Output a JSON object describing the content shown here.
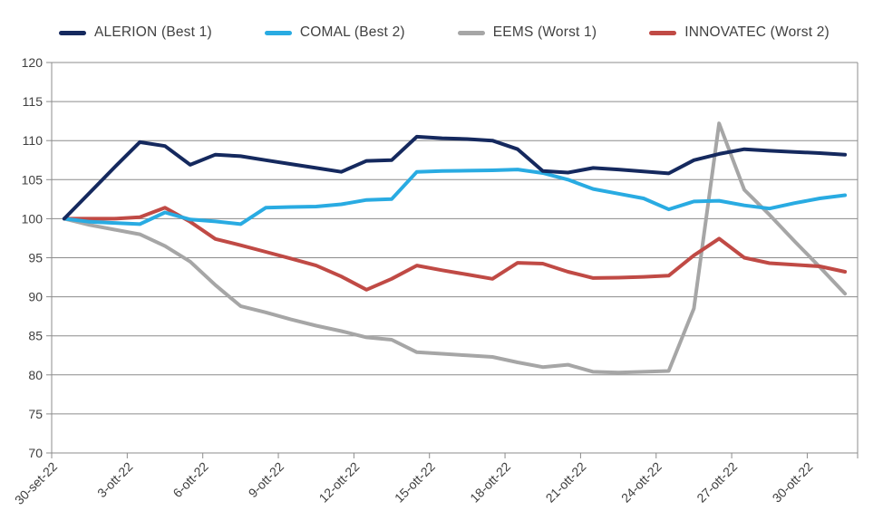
{
  "chart_data": {
    "type": "line",
    "title": "",
    "xlabel": "",
    "ylabel": "",
    "ylim": [
      70,
      120
    ],
    "y_tick_step": 5,
    "x_tick_label_every": 3,
    "grid": "horizontal",
    "legend_position": "top",
    "axis_color": "#8C8C8C",
    "label_color": "#3F3F3F",
    "categories": [
      "30-set-22",
      "1-ott-22",
      "2-ott-22",
      "3-ott-22",
      "4-ott-22",
      "5-ott-22",
      "6-ott-22",
      "7-ott-22",
      "8-ott-22",
      "9-ott-22",
      "10-ott-22",
      "11-ott-22",
      "12-ott-22",
      "13-ott-22",
      "14-ott-22",
      "15-ott-22",
      "16-ott-22",
      "17-ott-22",
      "18-ott-22",
      "19-ott-22",
      "20-ott-22",
      "21-ott-22",
      "22-ott-22",
      "23-ott-22",
      "24-ott-22",
      "25-ott-22",
      "26-ott-22",
      "27-ott-22",
      "28-ott-22",
      "29-ott-22",
      "30-ott-22",
      "31-ott-22"
    ],
    "series": [
      {
        "name": "ALERION (Best 1)",
        "color": "#15295E",
        "values": [
          100,
          103.3,
          106.6,
          109.8,
          109.3,
          106.9,
          108.2,
          108.0,
          107.5,
          107.0,
          106.5,
          106.0,
          107.4,
          107.5,
          110.5,
          110.3,
          110.2,
          110.0,
          108.9,
          106.1,
          105.9,
          106.5,
          106.3,
          106.05,
          105.8,
          107.5,
          108.3,
          108.9,
          108.7,
          108.55,
          108.4,
          108.2
        ]
      },
      {
        "name": "COMAL (Best 2)",
        "color": "#29ABE2",
        "values": [
          100,
          99.6,
          99.45,
          99.3,
          100.8,
          99.9,
          99.65,
          99.3,
          101.4,
          101.5,
          101.55,
          101.85,
          102.4,
          102.5,
          106.0,
          106.1,
          106.15,
          106.2,
          106.3,
          105.85,
          105.0,
          103.8,
          103.2,
          102.6,
          101.2,
          102.2,
          102.3,
          101.7,
          101.3,
          102.0,
          102.6,
          103.0
        ]
      },
      {
        "name": "EEMS (Worst 1)",
        "color": "#A6A6A6",
        "values": [
          100,
          99.2,
          98.6,
          98.0,
          96.5,
          94.5,
          91.5,
          88.8,
          88.0,
          87.1,
          86.3,
          85.6,
          84.8,
          84.5,
          82.9,
          82.7,
          82.5,
          82.3,
          81.6,
          81.0,
          81.3,
          80.4,
          80.3,
          80.4,
          80.5,
          88.5,
          112.2,
          103.7,
          100.5,
          97.1,
          93.8,
          90.4
        ]
      },
      {
        "name": "INNOVATEC (Worst 2)",
        "color": "#C04A45",
        "values": [
          100,
          100,
          100,
          100.2,
          101.4,
          99.6,
          97.4,
          96.6,
          95.75,
          94.9,
          94.0,
          92.6,
          90.9,
          92.3,
          94.0,
          93.4,
          92.85,
          92.3,
          94.35,
          94.25,
          93.2,
          92.4,
          92.45,
          92.55,
          92.7,
          95.3,
          97.45,
          95.0,
          94.3,
          94.1,
          93.9,
          93.2
        ]
      }
    ],
    "draw_order": [
      2,
      3,
      1,
      0
    ]
  }
}
